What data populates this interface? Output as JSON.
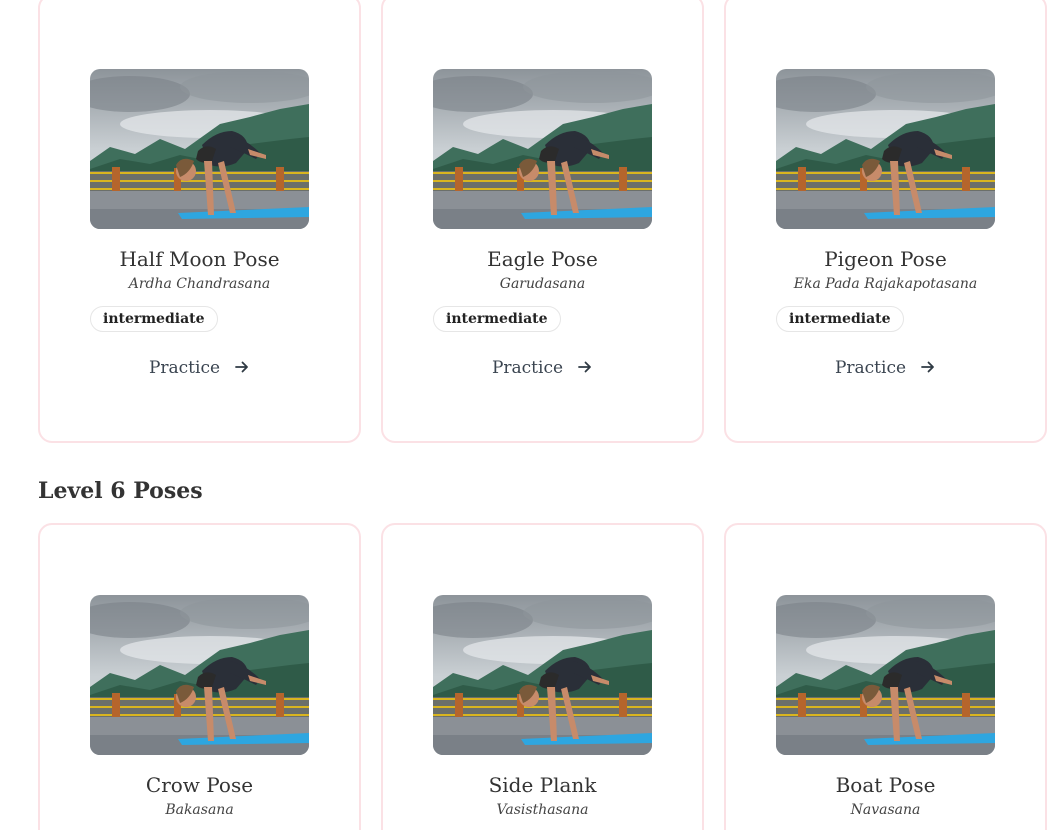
{
  "sections": [
    {
      "title": "",
      "cards": [
        {
          "name": "Half Moon Pose",
          "sanskrit": "Ardha Chandrasana",
          "level": "intermediate",
          "action": "Practice"
        },
        {
          "name": "Eagle Pose",
          "sanskrit": "Garudasana",
          "level": "intermediate",
          "action": "Practice"
        },
        {
          "name": "Pigeon Pose",
          "sanskrit": "Eka Pada Rajakapotasana",
          "level": "intermediate",
          "action": "Practice"
        }
      ]
    },
    {
      "title": "Level 6 Poses",
      "cards": [
        {
          "name": "Crow Pose",
          "sanskrit": "Bakasana"
        },
        {
          "name": "Side Plank",
          "sanskrit": "Vasisthasana"
        },
        {
          "name": "Boat Pose",
          "sanskrit": "Navasana"
        }
      ]
    }
  ],
  "colors": {
    "card_border": "#fbe1e5",
    "badge_border": "#e6e6e6",
    "text": "#333333"
  },
  "icons": {
    "practice_arrow": "arrow-right-icon"
  }
}
